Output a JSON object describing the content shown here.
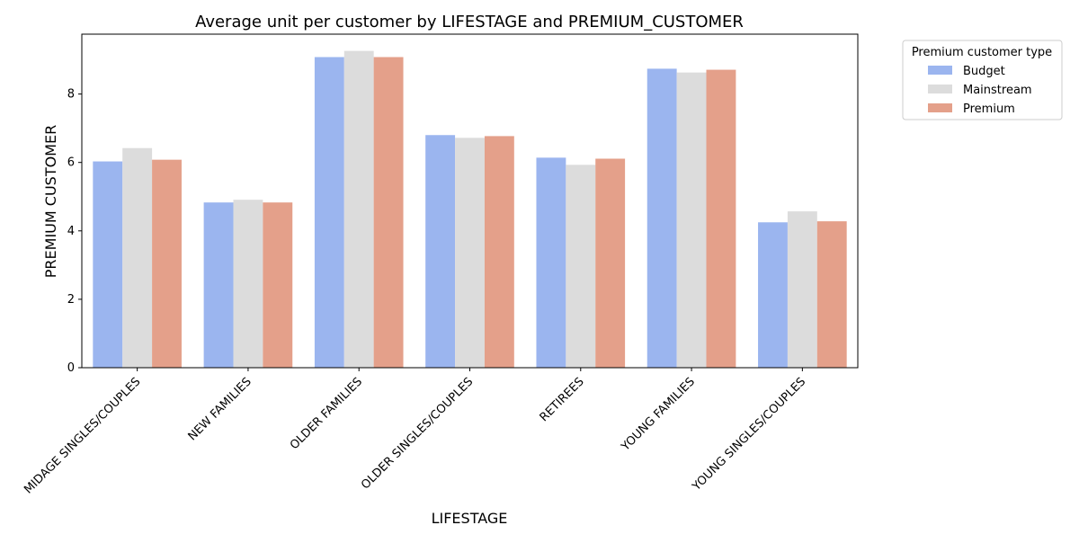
{
  "chart_data": {
    "type": "bar",
    "title": "Average unit per customer by LIFESTAGE and PREMIUM_CUSTOMER",
    "xlabel": "LIFESTAGE",
    "ylabel": "PREMIUM CUSTOMER",
    "ylim": [
      0,
      9.75
    ],
    "yticks": [
      0,
      2,
      4,
      6,
      8
    ],
    "grid": false,
    "categories": [
      "MIDAGE SINGLES/COUPLES",
      "NEW FAMILIES",
      "OLDER FAMILIES",
      "OLDER SINGLES/COUPLES",
      "RETIREES",
      "YOUNG FAMILIES",
      "YOUNG SINGLES/COUPLES"
    ],
    "legend": {
      "title": "Premium customer type",
      "placement": "outside-top-right"
    },
    "series": [
      {
        "name": "Budget",
        "color": "#9bb5ef",
        "values": [
          6.03,
          4.83,
          9.08,
          6.8,
          6.14,
          8.74,
          4.25
        ]
      },
      {
        "name": "Mainstream",
        "color": "#dcdcdc",
        "values": [
          6.42,
          4.91,
          9.26,
          6.72,
          5.93,
          8.63,
          4.57
        ]
      },
      {
        "name": "Premium",
        "color": "#e4a08a",
        "values": [
          6.08,
          4.83,
          9.08,
          6.77,
          6.11,
          8.71,
          4.28
        ]
      }
    ]
  }
}
